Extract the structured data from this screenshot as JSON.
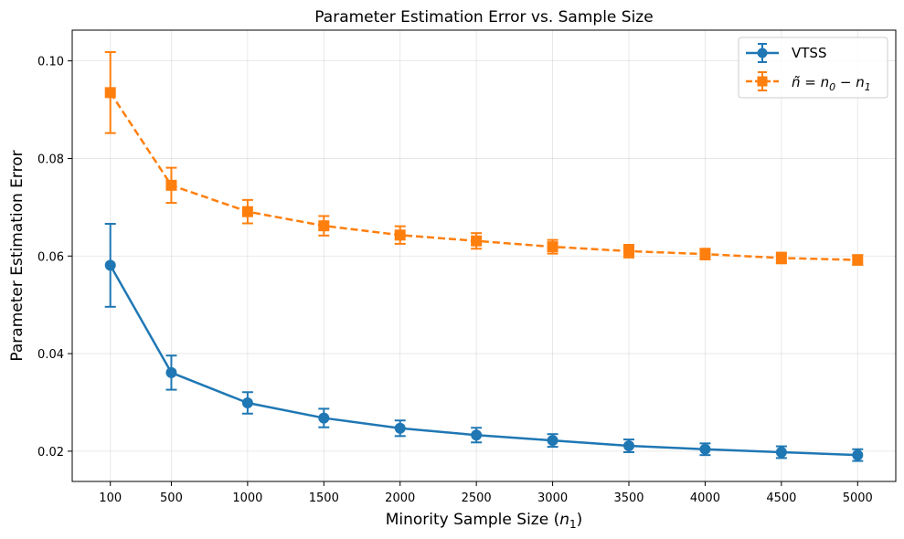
{
  "chart_data": {
    "type": "line",
    "title": "Parameter Estimation Error vs. Sample Size",
    "xlabel": "Minority Sample Size",
    "xlabel_sub": "1",
    "ylabel": "Parameter Estimation Error",
    "x": [
      100,
      500,
      1000,
      1500,
      2000,
      2500,
      3000,
      3500,
      4000,
      4500,
      5000
    ],
    "x_tick_labels": [
      "100",
      "500",
      "1000",
      "1500",
      "2000",
      "2500",
      "3000",
      "3500",
      "4000",
      "4500",
      "5000"
    ],
    "xlim": [
      -150,
      5250
    ],
    "ylim": [
      0.0138,
      0.1063
    ],
    "y_ticks": [
      0.02,
      0.04,
      0.06,
      0.08,
      0.1
    ],
    "y_tick_labels": [
      "0.02",
      "0.04",
      "0.06",
      "0.08",
      "0.10"
    ],
    "grid": true,
    "legend_position": "top-right",
    "series": [
      {
        "name": "VTSS",
        "marker": "circle",
        "line_style": "solid",
        "color": "#1f77b4",
        "values": [
          0.0581,
          0.0361,
          0.0299,
          0.0268,
          0.0247,
          0.0233,
          0.0222,
          0.0211,
          0.0204,
          0.0198,
          0.0192
        ],
        "errors": [
          0.0085,
          0.0035,
          0.0022,
          0.0019,
          0.0016,
          0.0015,
          0.0013,
          0.0013,
          0.0012,
          0.0012,
          0.0012
        ]
      },
      {
        "name_parts": [
          "ñ = n",
          "0",
          " − n",
          "1"
        ],
        "marker": "square",
        "line_style": "dashed",
        "color": "#ff7f0e",
        "values": [
          0.0935,
          0.0745,
          0.0691,
          0.0662,
          0.0643,
          0.0631,
          0.0619,
          0.061,
          0.0604,
          0.0596,
          0.0592
        ],
        "errors": [
          0.0083,
          0.0036,
          0.0024,
          0.002,
          0.0018,
          0.0016,
          0.0014,
          0.0013,
          0.0011,
          0.0011,
          0.001
        ]
      }
    ]
  }
}
